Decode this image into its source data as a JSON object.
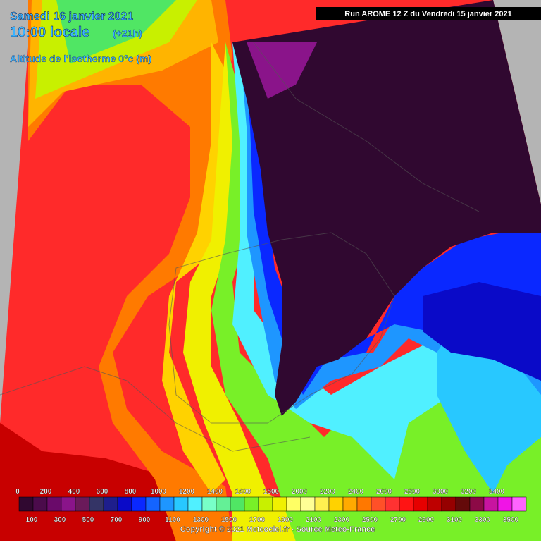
{
  "header": {
    "date": "Samedi 16 janvier 2021",
    "time": "10:00 locale",
    "offset": "(+21h)",
    "field": "Altitude de l'isotherme 0°c (m)",
    "run": "Run AROME 12 Z du Vendredi 15 janvier 2021"
  },
  "legend": {
    "top_labels": [
      0,
      200,
      400,
      600,
      800,
      1000,
      1200,
      1400,
      1600,
      1800,
      2000,
      2200,
      2400,
      2600,
      2800,
      3000,
      3200,
      3400
    ],
    "bottom_labels": [
      100,
      300,
      500,
      700,
      900,
      1100,
      1300,
      1500,
      1700,
      1900,
      2100,
      2300,
      2500,
      2700,
      2900,
      3100,
      3300,
      3500
    ],
    "colors": [
      "#300830",
      "#4b0b4b",
      "#6a0a6a",
      "#8a148a",
      "#6a1a5a",
      "#343466",
      "#1e1e8c",
      "#0a0ac8",
      "#0a28ff",
      "#1464ff",
      "#1e96ff",
      "#28c8ff",
      "#50f0ff",
      "#78ffc8",
      "#64f096",
      "#50e664",
      "#78f028",
      "#c8f000",
      "#f0f000",
      "#ffff64",
      "#ffff96",
      "#fff050",
      "#ffd200",
      "#ffaa00",
      "#ff7800",
      "#ff5028",
      "#ff3232",
      "#ff1414",
      "#e60000",
      "#be0000",
      "#960000",
      "#640a0a",
      "#8c0a46",
      "#c814a0",
      "#f014e6",
      "#ff64ff"
    ]
  },
  "footer": {
    "copyright": "Copyright © 2021 Meteociel.fr - Source Meteo-France"
  }
}
